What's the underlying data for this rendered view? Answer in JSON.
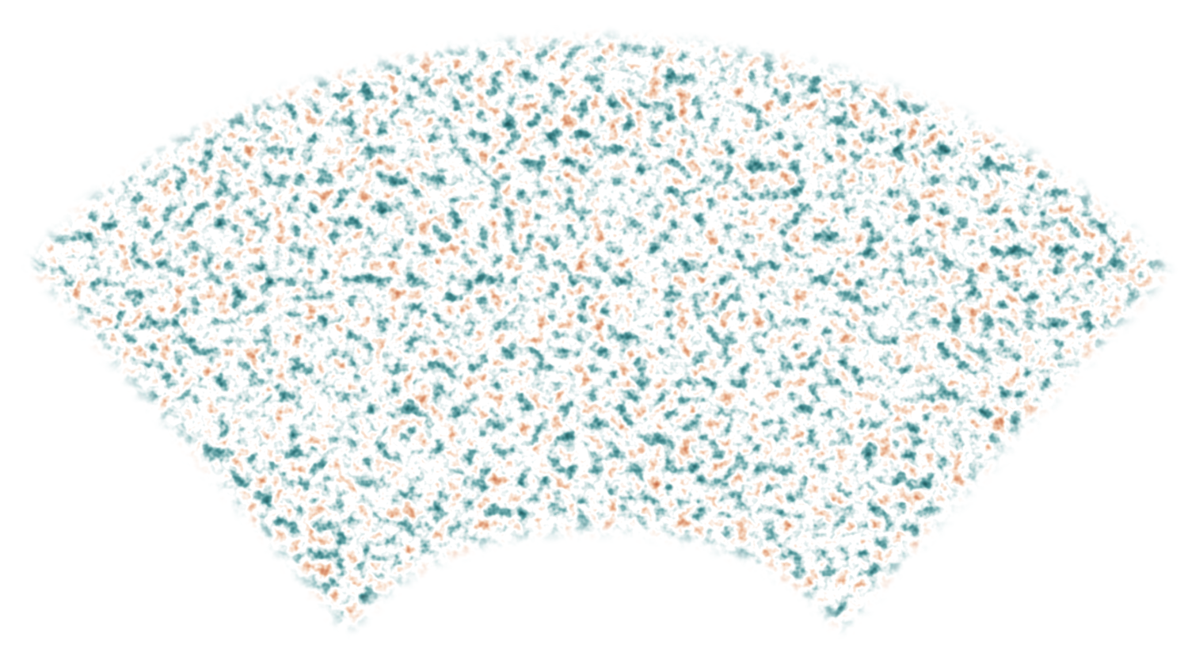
{
  "image": {
    "subject": "cmb-temperature-fluctuation-map",
    "background_color": "#ffffff",
    "palette": {
      "cold_dark": "#1f5f61",
      "cold_mid": "#5f9a9b",
      "cold_light": "#cfe2e2",
      "neutral": "#ffffff",
      "warm_light": "#f1d6c4",
      "warm_mid": "#d9976b",
      "warm_dark": "#b25a33"
    },
    "icons": [
      "fan-shaped-sky-map"
    ]
  }
}
